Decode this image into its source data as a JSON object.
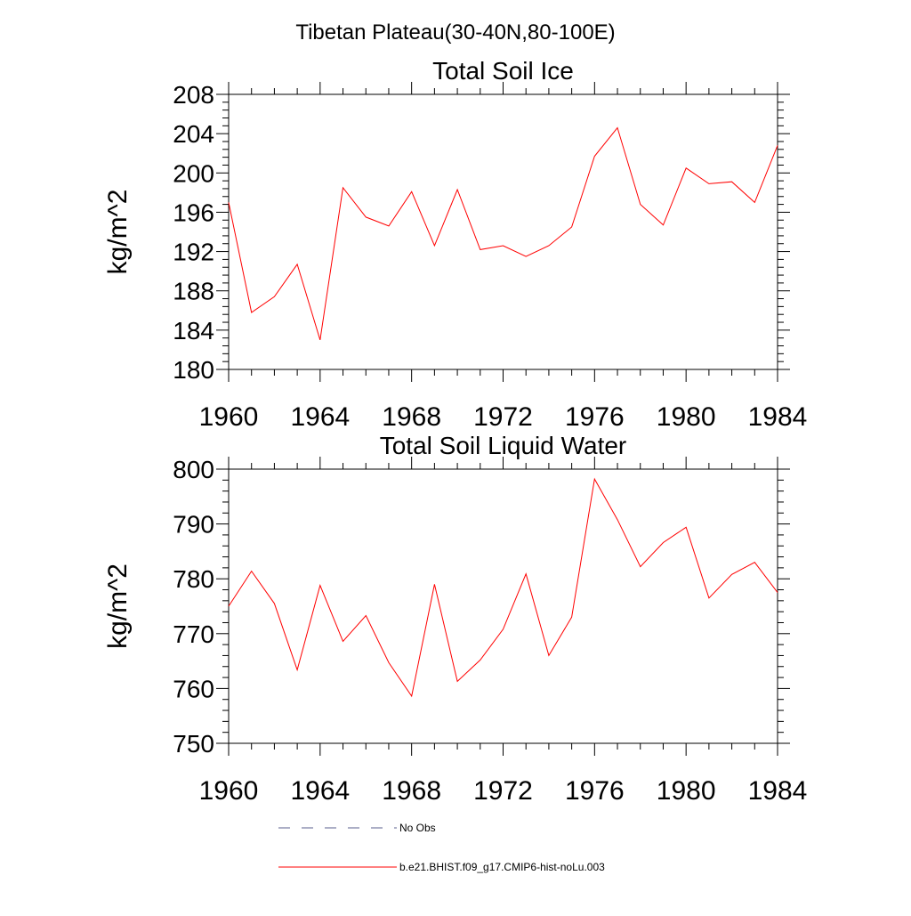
{
  "figure": {
    "title": "Tibetan Plateau(30-40N,80-100E)"
  },
  "chart_data": [
    {
      "type": "line",
      "title": "Total Soil Ice",
      "xlabel": "",
      "ylabel": "kg/m^2",
      "xlim": [
        1960,
        1984
      ],
      "ylim": [
        180,
        208
      ],
      "x_ticks": [
        1960,
        1964,
        1968,
        1972,
        1976,
        1980,
        1984
      ],
      "y_ticks": [
        180,
        184,
        188,
        192,
        196,
        200,
        204,
        208
      ],
      "grid": false,
      "x": [
        1960,
        1961,
        1962,
        1963,
        1964,
        1965,
        1966,
        1967,
        1968,
        1969,
        1970,
        1971,
        1972,
        1973,
        1974,
        1975,
        1976,
        1977,
        1978,
        1979,
        1980,
        1981,
        1982,
        1983,
        1984
      ],
      "series": [
        {
          "name": "b.e21.BHIST.f09_g17.CMIP6-hist-noLu.003",
          "color": "#ff0000",
          "values": [
            197.0,
            185.8,
            187.4,
            190.7,
            183.0,
            198.5,
            195.5,
            194.6,
            198.1,
            192.6,
            198.3,
            192.2,
            192.6,
            191.5,
            192.6,
            194.5,
            201.7,
            204.6,
            196.8,
            194.7,
            200.5,
            198.9,
            199.1,
            197.0,
            202.8
          ]
        }
      ]
    },
    {
      "type": "line",
      "title": "Total Soil Liquid Water",
      "xlabel": "",
      "ylabel": "kg/m^2",
      "xlim": [
        1960,
        1984
      ],
      "ylim": [
        750,
        800
      ],
      "x_ticks": [
        1960,
        1964,
        1968,
        1972,
        1976,
        1980,
        1984
      ],
      "y_ticks": [
        750,
        760,
        770,
        780,
        790,
        800
      ],
      "grid": false,
      "x": [
        1960,
        1961,
        1962,
        1963,
        1964,
        1965,
        1966,
        1967,
        1968,
        1969,
        1970,
        1971,
        1972,
        1973,
        1974,
        1975,
        1976,
        1977,
        1978,
        1979,
        1980,
        1981,
        1982,
        1983,
        1984
      ],
      "series": [
        {
          "name": "b.e21.BHIST.f09_g17.CMIP6-hist-noLu.003",
          "color": "#ff0000",
          "values": [
            775.0,
            781.4,
            775.5,
            763.4,
            778.8,
            768.6,
            773.3,
            764.7,
            758.6,
            779.0,
            761.3,
            765.2,
            770.8,
            780.9,
            766.0,
            773.0,
            798.2,
            790.8,
            782.2,
            786.6,
            789.4,
            776.5,
            780.8,
            783.0,
            777.5
          ]
        }
      ]
    }
  ],
  "legend": {
    "placement": "bottom",
    "entries": [
      {
        "label": "No Obs",
        "style": "dashed",
        "color": "#5a5f8c"
      },
      {
        "label": "b.e21.BHIST.f09_g17.CMIP6-hist-noLu.003",
        "style": "solid",
        "color": "#ff0000"
      }
    ]
  }
}
